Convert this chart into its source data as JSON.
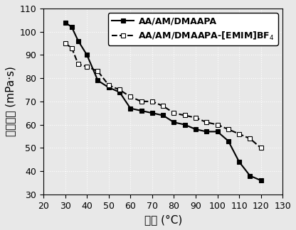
{
  "series1_label": "AA/AM/DMAAPA",
  "series2_label": "AA/AM/DMAAPA-[EMIM]BF$_4$",
  "series1_x": [
    30,
    33,
    36,
    40,
    45,
    50,
    55,
    60,
    65,
    70,
    75,
    80,
    85,
    90,
    95,
    100,
    105,
    110,
    115,
    120
  ],
  "series1_y": [
    104,
    102,
    96,
    90,
    79,
    76,
    74,
    67,
    66,
    65,
    64,
    61,
    60,
    58,
    57,
    57,
    53,
    44,
    38,
    36
  ],
  "series2_x": [
    30,
    33,
    36,
    40,
    45,
    50,
    55,
    60,
    65,
    70,
    75,
    80,
    85,
    90,
    95,
    100,
    105,
    110,
    115,
    120
  ],
  "series2_y": [
    95,
    93,
    86,
    85,
    83,
    77,
    75,
    72,
    70,
    70,
    68,
    65,
    64,
    63,
    61,
    60,
    58,
    56,
    54,
    50
  ],
  "xlabel_cn": "温度",
  "xlabel_unit": " (°C)",
  "ylabel_cn": "表观精度",
  "ylabel_unit": " (mPa·s)",
  "xlim": [
    20,
    130
  ],
  "ylim": [
    30,
    110
  ],
  "xticks": [
    20,
    30,
    40,
    50,
    60,
    70,
    80,
    90,
    100,
    110,
    120,
    130
  ],
  "yticks": [
    30,
    40,
    50,
    60,
    70,
    80,
    90,
    100,
    110
  ],
  "line_color": "#000000",
  "bg_color": "#e8e8e8",
  "grid_color": "#ffffff",
  "label_fontsize": 11,
  "tick_fontsize": 9,
  "legend_fontsize": 9
}
